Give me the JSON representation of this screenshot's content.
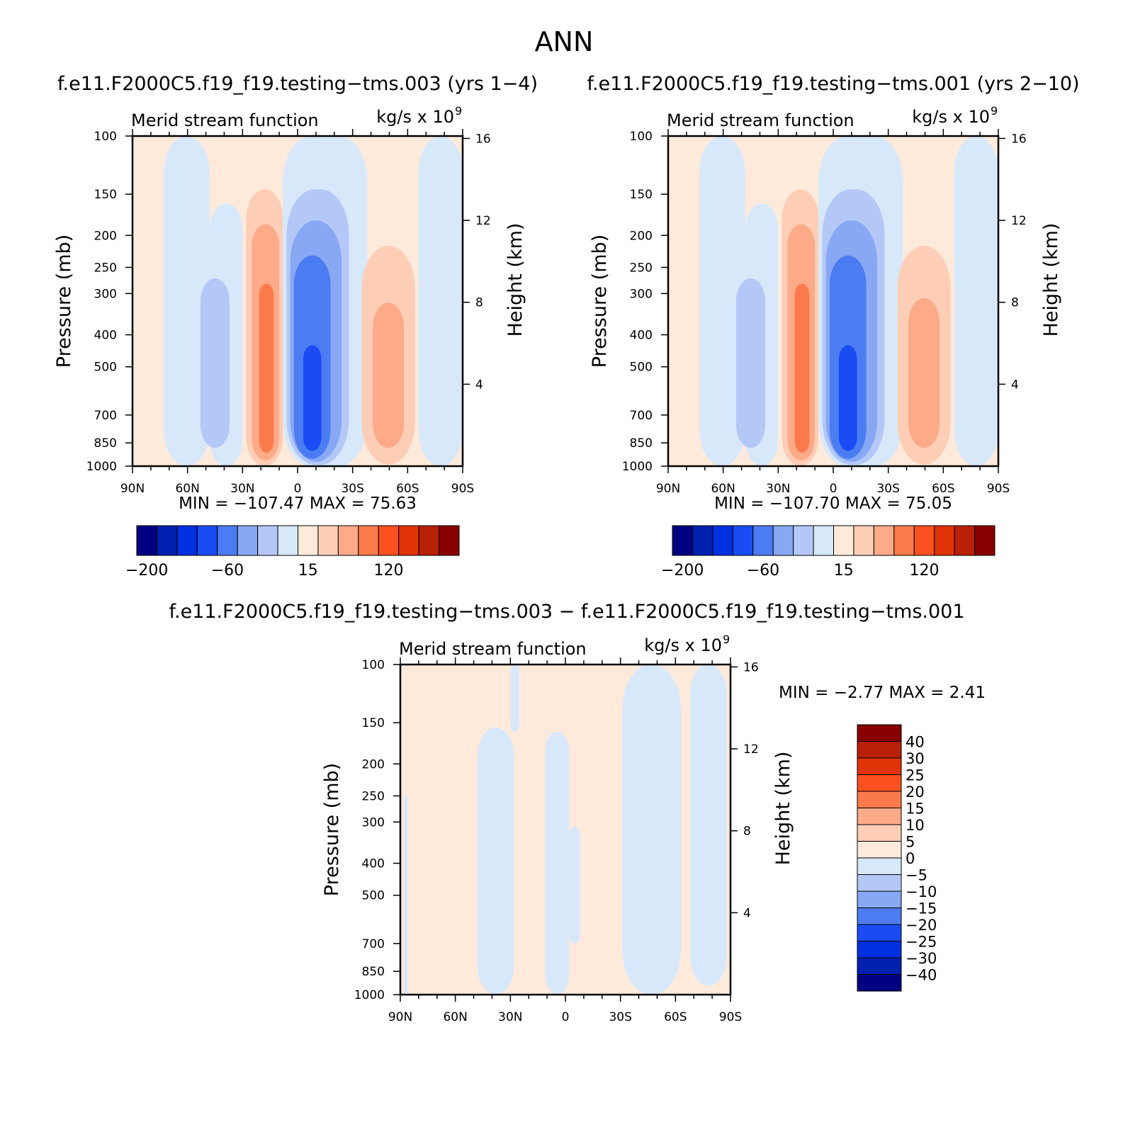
{
  "figure": {
    "title": "ANN"
  },
  "colors": {
    "main": [
      "#000080",
      "#0020b0",
      "#0030e0",
      "#1a4cf5",
      "#4c7cf2",
      "#88a8f4",
      "#b4c8f8",
      "#d8e8fb",
      "#feeadb",
      "#fdcdb6",
      "#fcaa88",
      "#fb7a4c",
      "#fb5020",
      "#e03408",
      "#b82008",
      "#880000"
    ],
    "diff": [
      "#000080",
      "#0020b0",
      "#0030e0",
      "#1a4cf5",
      "#4c7cf2",
      "#88a8f4",
      "#b4c8f8",
      "#d8e8fb",
      "#feeadb",
      "#fdcdb6",
      "#fcaa88",
      "#fb7a4c",
      "#fb5020",
      "#e03408",
      "#b82008",
      "#880000"
    ],
    "axis": "#000000"
  },
  "chart_data": [
    {
      "type": "heatmap",
      "title": "f.e11.F2000C5.f19_f19.testing−tms.003 (yrs 1−4)",
      "subtitle_left": "Merid stream function",
      "units": "kg/s x 10",
      "units_exp": "9",
      "ylabel": "Pressure (mb)",
      "ylabel_right": "Height (km)",
      "x_ticks": [
        "90N",
        "60N",
        "30N",
        "0",
        "30S",
        "60S",
        "90S"
      ],
      "x_tick_values": [
        -90,
        -60,
        -30,
        0,
        30,
        60,
        90
      ],
      "xlim": [
        -90,
        90
      ],
      "y_ticks": [
        "100",
        "150",
        "200",
        "250",
        "300",
        "400",
        "500",
        "700",
        "850",
        "1000"
      ],
      "y_tick_values": [
        100,
        150,
        200,
        250,
        300,
        400,
        500,
        700,
        850,
        1000
      ],
      "ylim": [
        100,
        1000
      ],
      "y_scale": "log",
      "height_ticks": [
        "16",
        "12",
        "8",
        "4"
      ],
      "height_tick_values": [
        16,
        12,
        8,
        4
      ],
      "min_label": "MIN = ",
      "min_value": "−107.47",
      "max_label": "MAX = ",
      "max_value": "75.63",
      "colorbar_labels": [
        "−200",
        "−60",
        "15",
        "120"
      ],
      "colorbar_label_bins": [
        0.5,
        4.5,
        8.5,
        12.5
      ],
      "cells": [
        {
          "lat0": -73,
          "lat1": -48,
          "p0": 100,
          "p1": 1000,
          "level": 7
        },
        {
          "lat0": -48,
          "lat1": -30,
          "p0": 160,
          "p1": 1000,
          "level": 7
        },
        {
          "lat0": -53,
          "lat1": -37,
          "p0": 270,
          "p1": 880,
          "level": 6
        },
        {
          "lat0": -28,
          "lat1": -8,
          "p0": 145,
          "p1": 1000,
          "level": 9
        },
        {
          "lat0": -25,
          "lat1": -10,
          "p0": 185,
          "p1": 960,
          "level": 10
        },
        {
          "lat0": -21,
          "lat1": -13,
          "p0": 280,
          "p1": 910,
          "level": 11
        },
        {
          "lat0": -8,
          "lat1": 38,
          "p0": 100,
          "p1": 1000,
          "level": 7
        },
        {
          "lat0": -6,
          "lat1": 28,
          "p0": 145,
          "p1": 990,
          "level": 6
        },
        {
          "lat0": -4,
          "lat1": 24,
          "p0": 180,
          "p1": 970,
          "level": 5
        },
        {
          "lat0": -2,
          "lat1": 18,
          "p0": 230,
          "p1": 950,
          "level": 4
        },
        {
          "lat0": 3,
          "lat1": 13,
          "p0": 430,
          "p1": 900,
          "level": 3
        },
        {
          "lat0": 35,
          "lat1": 64,
          "p0": 215,
          "p1": 990,
          "level": 9
        },
        {
          "lat0": 41,
          "lat1": 58,
          "p0": 320,
          "p1": 880,
          "level": 10
        },
        {
          "lat0": 66,
          "lat1": 90,
          "p0": 100,
          "p1": 1000,
          "level": 7
        }
      ]
    },
    {
      "type": "heatmap",
      "title": "f.e11.F2000C5.f19_f19.testing−tms.001 (yrs 2−10)",
      "subtitle_left": "Merid stream function",
      "units": "kg/s x 10",
      "units_exp": "9",
      "ylabel": "Pressure (mb)",
      "ylabel_right": "Height (km)",
      "x_ticks": [
        "90N",
        "60N",
        "30N",
        "0",
        "30S",
        "60S",
        "90S"
      ],
      "x_tick_values": [
        -90,
        -60,
        -30,
        0,
        30,
        60,
        90
      ],
      "xlim": [
        -90,
        90
      ],
      "y_ticks": [
        "100",
        "150",
        "200",
        "250",
        "300",
        "400",
        "500",
        "700",
        "850",
        "1000"
      ],
      "y_tick_values": [
        100,
        150,
        200,
        250,
        300,
        400,
        500,
        700,
        850,
        1000
      ],
      "ylim": [
        100,
        1000
      ],
      "y_scale": "log",
      "height_ticks": [
        "16",
        "12",
        "8",
        "4"
      ],
      "height_tick_values": [
        16,
        12,
        8,
        4
      ],
      "min_label": "MIN = ",
      "min_value": "−107.70",
      "max_label": "MAX = ",
      "max_value": "75.05",
      "colorbar_labels": [
        "−200",
        "−60",
        "15",
        "120"
      ],
      "colorbar_label_bins": [
        0.5,
        4.5,
        8.5,
        12.5
      ],
      "cells": [
        {
          "lat0": -73,
          "lat1": -48,
          "p0": 100,
          "p1": 1000,
          "level": 7
        },
        {
          "lat0": -48,
          "lat1": -30,
          "p0": 160,
          "p1": 1000,
          "level": 7
        },
        {
          "lat0": -53,
          "lat1": -37,
          "p0": 270,
          "p1": 880,
          "level": 6
        },
        {
          "lat0": -28,
          "lat1": -8,
          "p0": 145,
          "p1": 1000,
          "level": 9
        },
        {
          "lat0": -25,
          "lat1": -10,
          "p0": 185,
          "p1": 960,
          "level": 10
        },
        {
          "lat0": -21,
          "lat1": -13,
          "p0": 280,
          "p1": 910,
          "level": 11
        },
        {
          "lat0": -8,
          "lat1": 38,
          "p0": 100,
          "p1": 1000,
          "level": 7
        },
        {
          "lat0": -6,
          "lat1": 28,
          "p0": 145,
          "p1": 990,
          "level": 6
        },
        {
          "lat0": -4,
          "lat1": 24,
          "p0": 180,
          "p1": 970,
          "level": 5
        },
        {
          "lat0": -2,
          "lat1": 18,
          "p0": 230,
          "p1": 950,
          "level": 4
        },
        {
          "lat0": 3,
          "lat1": 13,
          "p0": 430,
          "p1": 900,
          "level": 3
        },
        {
          "lat0": 35,
          "lat1": 64,
          "p0": 215,
          "p1": 990,
          "level": 9
        },
        {
          "lat0": 41,
          "lat1": 58,
          "p0": 310,
          "p1": 880,
          "level": 10
        },
        {
          "lat0": 66,
          "lat1": 90,
          "p0": 100,
          "p1": 1000,
          "level": 7
        }
      ]
    },
    {
      "type": "heatmap",
      "title": "f.e11.F2000C5.f19_f19.testing−tms.003 − f.e11.F2000C5.f19_f19.testing−tms.001",
      "subtitle_left": "Merid stream function",
      "units": "kg/s x 10",
      "units_exp": "9",
      "ylabel": "Pressure (mb)",
      "ylabel_right": "Height (km)",
      "x_ticks": [
        "90N",
        "60N",
        "30N",
        "0",
        "30S",
        "60S",
        "90S"
      ],
      "x_tick_values": [
        -90,
        -60,
        -30,
        0,
        30,
        60,
        90
      ],
      "xlim": [
        -90,
        90
      ],
      "y_ticks": [
        "100",
        "150",
        "200",
        "250",
        "300",
        "400",
        "500",
        "700",
        "850",
        "1000"
      ],
      "y_tick_values": [
        100,
        150,
        200,
        250,
        300,
        400,
        500,
        700,
        850,
        1000
      ],
      "ylim": [
        100,
        1000
      ],
      "y_scale": "log",
      "height_ticks": [
        "16",
        "12",
        "8",
        "4"
      ],
      "height_tick_values": [
        16,
        12,
        8,
        4
      ],
      "min_label": "MIN = ",
      "min_value": "−2.77",
      "max_label": "MAX = ",
      "max_value": "2.41",
      "colorbar_labels": [
        "40",
        "30",
        "25",
        "20",
        "15",
        "10",
        "5",
        "0",
        "−5",
        "−10",
        "−15",
        "−20",
        "−25",
        "−30",
        "−40"
      ],
      "cells": [
        {
          "lat0": -48,
          "lat1": -28,
          "p0": 155,
          "p1": 1000,
          "level": 7
        },
        {
          "lat0": -30,
          "lat1": -25,
          "p0": 100,
          "p1": 160,
          "level": 7
        },
        {
          "lat0": -11,
          "lat1": 2,
          "p0": 160,
          "p1": 1000,
          "level": 7
        },
        {
          "lat0": 2,
          "lat1": 8,
          "p0": 310,
          "p1": 700,
          "level": 7
        },
        {
          "lat0": 31,
          "lat1": 63,
          "p0": 100,
          "p1": 1000,
          "level": 7
        },
        {
          "lat0": 68,
          "lat1": 88,
          "p0": 100,
          "p1": 940,
          "level": 7
        },
        {
          "lat0": -88,
          "lat1": -86,
          "p0": 250,
          "p1": 1000,
          "level": 7
        }
      ]
    }
  ]
}
